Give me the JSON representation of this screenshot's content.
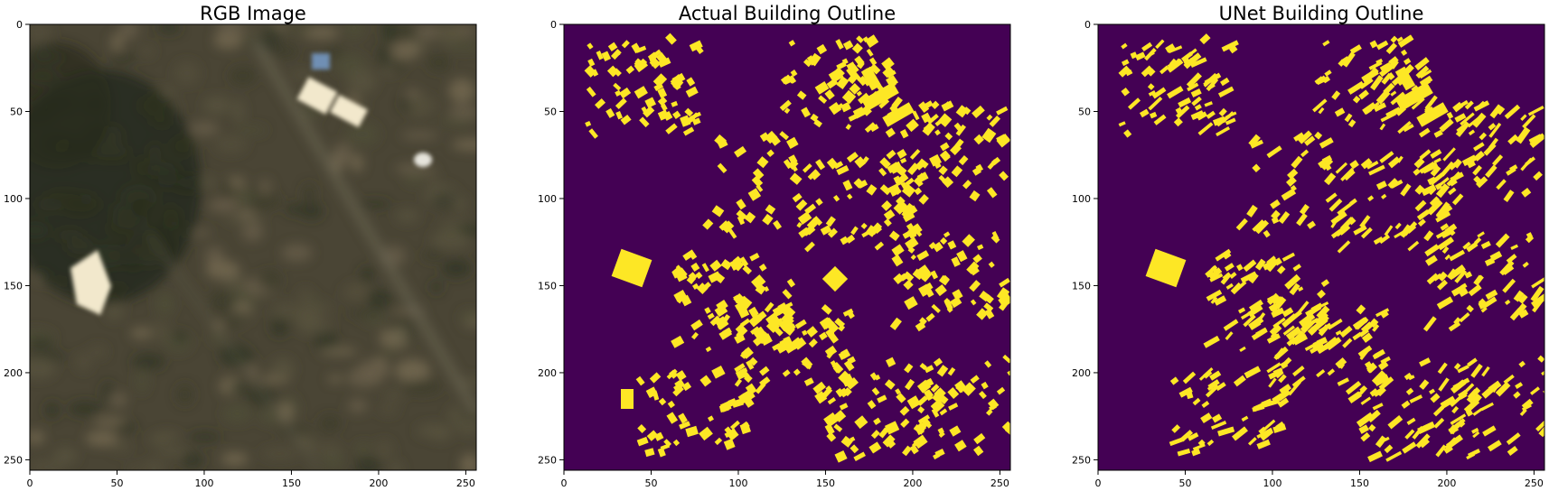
{
  "figure": {
    "panels": [
      {
        "title": "RGB Image",
        "kind": "rgb",
        "xticks": [
          0,
          50,
          100,
          150,
          200,
          250
        ],
        "yticks": [
          0,
          50,
          100,
          150,
          200,
          250
        ],
        "extent": [
          0,
          256
        ],
        "colors": {
          "base": "#4a4535",
          "dark_vegetation": "#262b1c",
          "bright_roof": "#f2e8cc",
          "blue_roof": "#6f8fb4"
        }
      },
      {
        "title": "Actual Building Outline",
        "kind": "mask",
        "xticks": [
          0,
          50,
          100,
          150,
          200,
          250
        ],
        "yticks": [
          0,
          50,
          100,
          150,
          200,
          250
        ],
        "extent": [
          0,
          256
        ],
        "colors": {
          "background": "#440154",
          "building": "#fde725",
          "edge": "#21918c"
        }
      },
      {
        "title": "UNet Building Outline",
        "kind": "mask",
        "xticks": [
          0,
          50,
          100,
          150,
          200,
          250
        ],
        "yticks": [
          0,
          50,
          100,
          150,
          200,
          250
        ],
        "extent": [
          0,
          256
        ],
        "colors": {
          "background": "#440154",
          "building": "#fde725",
          "edge": "#21918c"
        }
      }
    ]
  }
}
